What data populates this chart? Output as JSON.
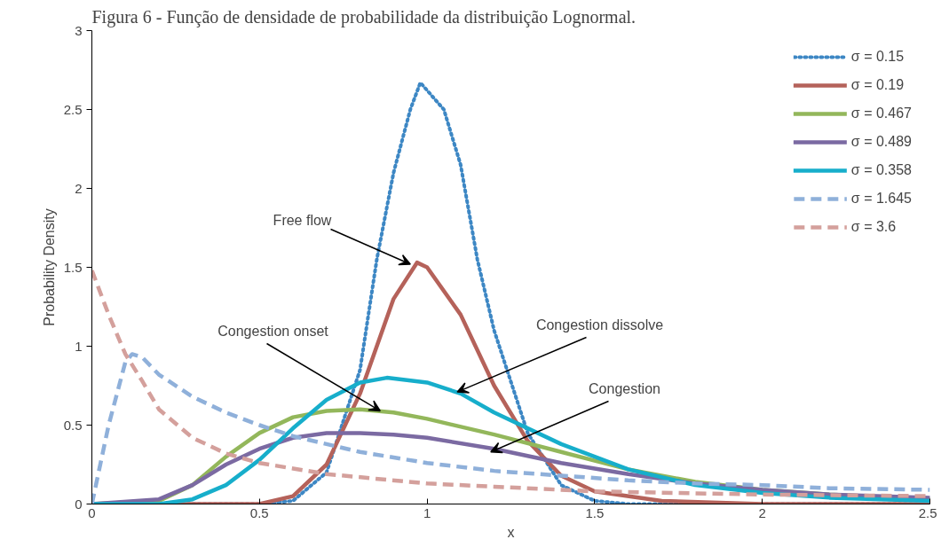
{
  "chart_data": {
    "type": "line",
    "title": "Figura 6 - Função de densidade de probabilidade da distribuição Lognormal.",
    "xlabel": "x",
    "ylabel": "Probability Density",
    "xlim": [
      0,
      2.5
    ],
    "xticks": [
      0,
      0.5,
      1,
      1.5,
      2,
      2.5
    ],
    "ylim": [
      0,
      3
    ],
    "yticks": [
      0,
      0.5,
      1,
      1.5,
      2,
      2.5,
      3
    ],
    "grid": false,
    "legend": "top right",
    "series": [
      {
        "name": "σ = 0.15",
        "color": "#3d87c4",
        "line_style": "dotted",
        "x": [
          0,
          0.5,
          0.6,
          0.7,
          0.8,
          0.85,
          0.9,
          0.95,
          0.98,
          1.05,
          1.1,
          1.15,
          1.2,
          1.3,
          1.4,
          1.5,
          1.6,
          2.5
        ],
        "values": [
          0,
          0,
          0.02,
          0.2,
          0.85,
          1.55,
          2.1,
          2.5,
          2.67,
          2.5,
          2.15,
          1.55,
          1.1,
          0.45,
          0.12,
          0.02,
          0,
          0
        ]
      },
      {
        "name": "σ = 0.19",
        "color": "#b5625a",
        "line_style": "solid",
        "x": [
          0,
          0.5,
          0.6,
          0.7,
          0.8,
          0.9,
          0.97,
          1.0,
          1.1,
          1.2,
          1.3,
          1.4,
          1.5,
          1.7,
          2.0,
          2.5
        ],
        "values": [
          0,
          0,
          0.05,
          0.25,
          0.7,
          1.3,
          1.53,
          1.5,
          1.2,
          0.75,
          0.4,
          0.18,
          0.08,
          0.02,
          0,
          0
        ]
      },
      {
        "name": "σ = 0.467",
        "color": "#93b75b",
        "line_style": "solid",
        "x": [
          0,
          0.2,
          0.3,
          0.4,
          0.5,
          0.6,
          0.7,
          0.8,
          0.9,
          1.0,
          1.2,
          1.4,
          1.6,
          1.8,
          2.0,
          2.2,
          2.5
        ],
        "values": [
          0,
          0.02,
          0.12,
          0.3,
          0.45,
          0.55,
          0.59,
          0.6,
          0.58,
          0.54,
          0.44,
          0.33,
          0.22,
          0.14,
          0.09,
          0.06,
          0.03
        ]
      },
      {
        "name": "σ = 0.489",
        "color": "#7b6aa2",
        "line_style": "solid",
        "x": [
          0,
          0.2,
          0.3,
          0.4,
          0.5,
          0.6,
          0.7,
          0.8,
          0.9,
          1.0,
          1.2,
          1.4,
          1.6,
          1.8,
          2.0,
          2.2,
          2.5
        ],
        "values": [
          0,
          0.03,
          0.12,
          0.25,
          0.35,
          0.42,
          0.45,
          0.45,
          0.44,
          0.42,
          0.35,
          0.26,
          0.19,
          0.13,
          0.09,
          0.06,
          0.04
        ]
      },
      {
        "name": "σ = 0.358",
        "color": "#17aecb",
        "line_style": "solid",
        "x": [
          0,
          0.2,
          0.3,
          0.4,
          0.5,
          0.6,
          0.7,
          0.8,
          0.88,
          1.0,
          1.1,
          1.2,
          1.4,
          1.6,
          1.8,
          2.0,
          2.2,
          2.5
        ],
        "values": [
          0,
          0,
          0.03,
          0.12,
          0.28,
          0.48,
          0.66,
          0.77,
          0.8,
          0.77,
          0.7,
          0.58,
          0.38,
          0.22,
          0.12,
          0.07,
          0.04,
          0.02
        ]
      },
      {
        "name": "σ = 1.645",
        "color": "#8fb0da",
        "line_style": "dashed",
        "x": [
          0,
          0.05,
          0.1,
          0.12,
          0.15,
          0.2,
          0.3,
          0.4,
          0.5,
          0.6,
          0.8,
          1.0,
          1.2,
          1.4,
          1.6,
          1.8,
          2.0,
          2.2,
          2.5
        ],
        "values": [
          0,
          0.5,
          0.9,
          0.95,
          0.93,
          0.82,
          0.68,
          0.58,
          0.5,
          0.43,
          0.33,
          0.26,
          0.21,
          0.18,
          0.15,
          0.13,
          0.12,
          0.1,
          0.09
        ]
      },
      {
        "name": "σ = 3.6",
        "color": "#d4a09c",
        "line_style": "dashed",
        "x": [
          0,
          0.05,
          0.1,
          0.15,
          0.2,
          0.3,
          0.4,
          0.5,
          0.7,
          1.0,
          1.2,
          1.5,
          2.0,
          2.5
        ],
        "values": [
          1.48,
          1.2,
          0.95,
          0.78,
          0.6,
          0.42,
          0.32,
          0.26,
          0.19,
          0.13,
          0.11,
          0.08,
          0.06,
          0.05
        ]
      }
    ],
    "annotations": [
      {
        "text": "Free flow",
        "x": 0.95,
        "y": 1.52
      },
      {
        "text": "Congestion onset",
        "x": 0.86,
        "y": 0.59
      },
      {
        "text": "Congestion dissolve",
        "x": 1.09,
        "y": 0.71
      },
      {
        "text": "Congestion",
        "x": 1.19,
        "y": 0.33
      }
    ]
  }
}
